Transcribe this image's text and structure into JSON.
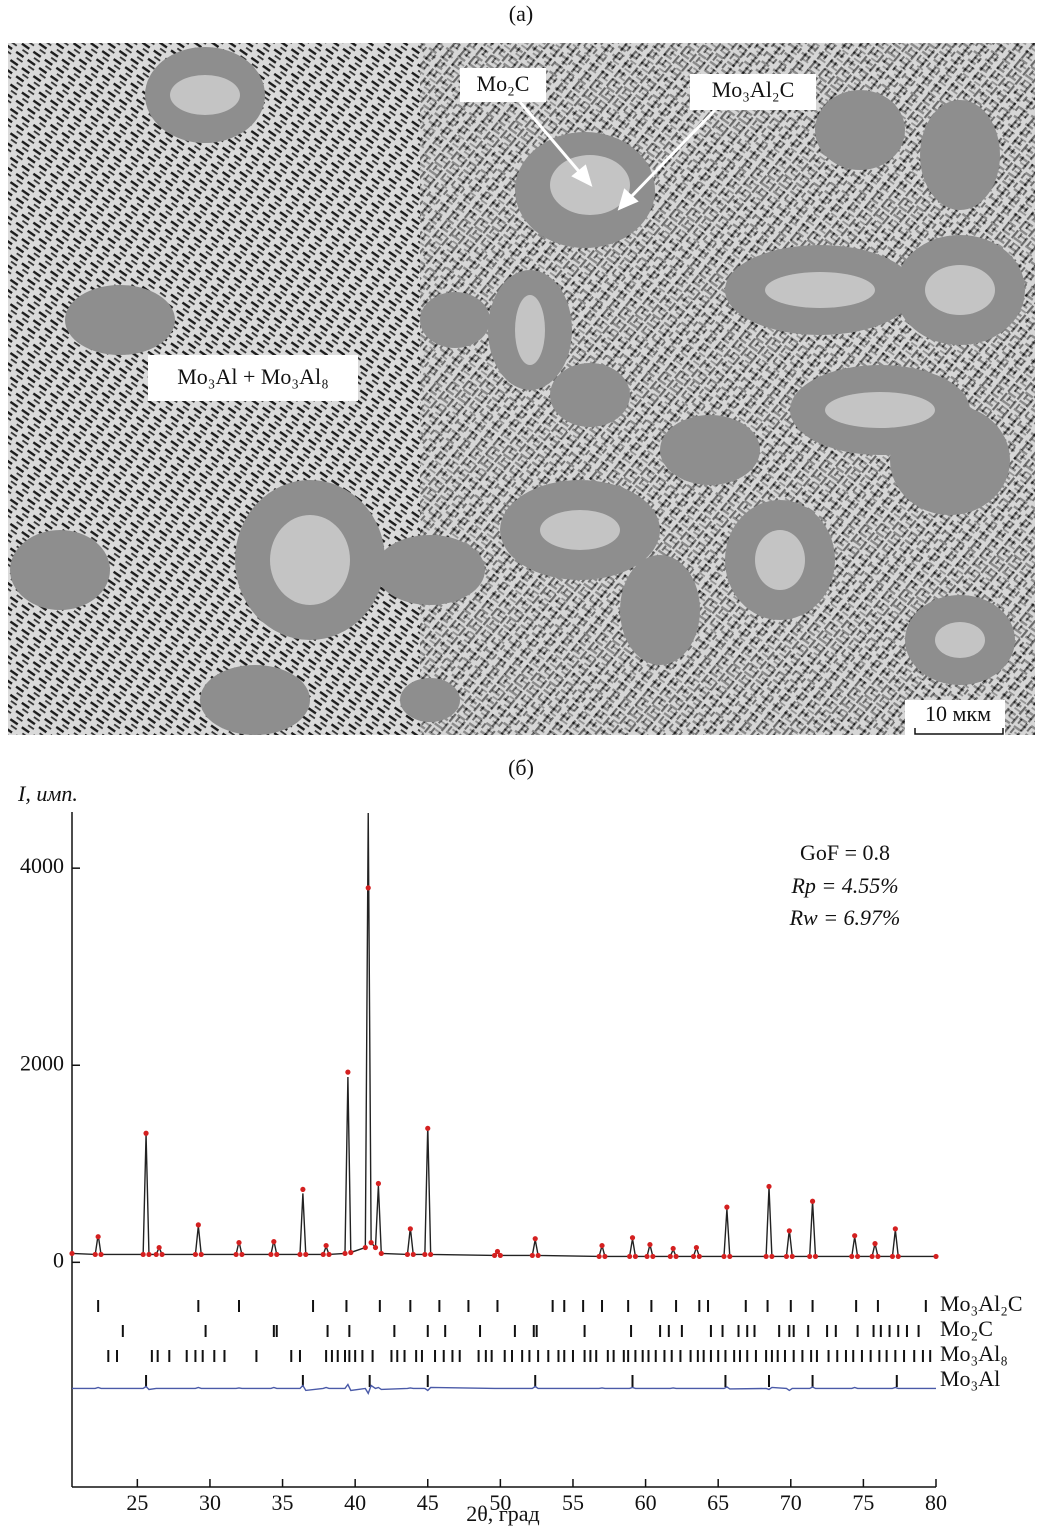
{
  "panel_a": {
    "label": "(a)",
    "annotations": [
      "Mo₂C",
      "Mo₃Al₂C",
      "Mo₃Al + Mo₃Al₈"
    ],
    "scale_bar": "10 мкм"
  },
  "chart_data": {
    "type": "line",
    "panel_label": "(б)",
    "y_label": "I, имп.",
    "x_label": "2θ, град",
    "annotations": [
      "GoF = 0.8",
      "Rp = 4.55%",
      "Rw = 6.97%"
    ],
    "xlim": [
      20.5,
      80
    ],
    "xticks": [
      25,
      30,
      35,
      40,
      45,
      50,
      55,
      60,
      65,
      70,
      75,
      80
    ],
    "ylim": [
      -2280,
      4570
    ],
    "yticks": [
      0,
      2000,
      4000
    ],
    "x": [
      20.5,
      22.1,
      22.3,
      22.5,
      25.4,
      25.6,
      25.8,
      26.3,
      26.5,
      26.7,
      29.0,
      29.2,
      29.4,
      31.8,
      32.0,
      32.2,
      34.2,
      34.4,
      34.6,
      36.2,
      36.4,
      36.6,
      37.8,
      38.0,
      38.2,
      39.3,
      39.5,
      39.7,
      40.7,
      40.9,
      41.1,
      41.4,
      41.6,
      41.8,
      43.6,
      43.8,
      44.0,
      44.8,
      45.0,
      45.2,
      49.6,
      49.8,
      50.0,
      52.2,
      52.4,
      52.6,
      56.8,
      57.0,
      57.2,
      58.9,
      59.1,
      59.3,
      60.1,
      60.3,
      60.5,
      61.7,
      61.9,
      62.1,
      63.3,
      63.5,
      63.7,
      65.4,
      65.6,
      65.8,
      68.3,
      68.5,
      68.7,
      69.7,
      69.9,
      70.1,
      71.3,
      71.5,
      71.7,
      74.2,
      74.4,
      74.6,
      75.6,
      75.8,
      76.0,
      77.0,
      77.2,
      77.4,
      80
    ],
    "series": [
      {
        "color": "#222222",
        "mode": "line",
        "values": [
          90,
          80,
          280,
          80,
          80,
          1300,
          80,
          80,
          150,
          80,
          80,
          370,
          80,
          80,
          210,
          80,
          80,
          220,
          80,
          80,
          700,
          80,
          80,
          160,
          80,
          90,
          1880,
          100,
          150,
          4560,
          200,
          150,
          780,
          90,
          80,
          350,
          80,
          80,
          1380,
          80,
          70,
          100,
          70,
          70,
          230,
          70,
          60,
          170,
          60,
          60,
          240,
          60,
          60,
          180,
          60,
          60,
          130,
          60,
          60,
          150,
          60,
          60,
          540,
          60,
          60,
          760,
          60,
          60,
          330,
          60,
          60,
          620,
          60,
          60,
          260,
          60,
          60,
          190,
          60,
          60,
          330,
          60,
          60
        ]
      },
      {
        "color": "#d42020",
        "mode": "markers",
        "values": [
          90,
          80,
          260,
          80,
          80,
          1310,
          80,
          80,
          150,
          80,
          80,
          380,
          80,
          80,
          200,
          80,
          80,
          210,
          80,
          80,
          740,
          80,
          80,
          170,
          80,
          90,
          1930,
          100,
          150,
          3800,
          200,
          150,
          800,
          90,
          80,
          340,
          80,
          80,
          1360,
          80,
          70,
          110,
          70,
          70,
          240,
          70,
          60,
          170,
          60,
          60,
          250,
          60,
          60,
          180,
          60,
          60,
          140,
          60,
          60,
          150,
          60,
          60,
          560,
          60,
          60,
          770,
          60,
          60,
          320,
          60,
          60,
          620,
          60,
          60,
          270,
          60,
          60,
          190,
          60,
          60,
          340,
          60,
          60
        ]
      },
      {
        "color": "#4a5aa8",
        "mode": "line",
        "values": [
          -1280,
          -1280,
          -1270,
          -1280,
          -1280,
          -1260,
          -1290,
          -1280,
          -1280,
          -1280,
          -1280,
          -1270,
          -1280,
          -1280,
          -1275,
          -1280,
          -1280,
          -1270,
          -1280,
          -1280,
          -1250,
          -1300,
          -1280,
          -1270,
          -1280,
          -1280,
          -1240,
          -1300,
          -1280,
          -1330,
          -1250,
          -1280,
          -1270,
          -1290,
          -1280,
          -1275,
          -1280,
          -1280,
          -1300,
          -1270,
          -1280,
          -1280,
          -1280,
          -1280,
          -1260,
          -1280,
          -1280,
          -1275,
          -1280,
          -1280,
          -1270,
          -1280,
          -1280,
          -1280,
          -1280,
          -1280,
          -1275,
          -1280,
          -1280,
          -1280,
          -1280,
          -1280,
          -1265,
          -1285,
          -1280,
          -1290,
          -1270,
          -1280,
          -1300,
          -1280,
          -1280,
          -1265,
          -1280,
          -1280,
          -1270,
          -1280,
          -1280,
          -1280,
          -1280,
          -1280,
          -1270,
          -1280,
          -1280
        ]
      }
    ],
    "reflections": [
      {
        "name": "Mo₃Al₂C",
        "positions": [
          22.3,
          29.2,
          32.0,
          37.1,
          39.4,
          41.7,
          43.8,
          45.8,
          47.8,
          49.8,
          53.6,
          54.4,
          55.7,
          57.0,
          58.8,
          60.4,
          62.1,
          63.7,
          64.3,
          66.9,
          68.4,
          70.0,
          71.5,
          74.5,
          76.0,
          79.3
        ]
      },
      {
        "name": "Mo₂C",
        "positions": [
          24.0,
          29.7,
          34.4,
          34.6,
          38.1,
          39.6,
          42.7,
          45.0,
          46.2,
          48.6,
          51.0,
          52.3,
          52.5,
          55.8,
          59.0,
          61.0,
          61.6,
          62.5,
          64.5,
          65.3,
          66.4,
          67.0,
          67.5,
          69.2,
          69.9,
          70.2,
          71.2,
          72.5,
          73.1,
          74.6,
          75.7,
          76.2,
          76.8,
          77.4,
          78.0,
          78.8
        ]
      },
      {
        "name": "Mo₃Al₈",
        "positions": [
          23.0,
          23.6,
          26.0,
          26.4,
          27.2,
          28.4,
          29.0,
          29.5,
          30.3,
          31.0,
          33.2,
          35.6,
          36.2,
          38.0,
          38.4,
          38.8,
          39.3,
          39.6,
          40.0,
          40.5,
          41.2,
          42.5,
          42.9,
          43.4,
          44.2,
          44.6,
          45.5,
          46.1,
          46.7,
          47.2,
          48.5,
          49.0,
          49.4,
          50.3,
          50.8,
          51.5,
          52.0,
          52.6,
          53.3,
          54.0,
          54.4,
          55.0,
          55.8,
          56.2,
          56.6,
          57.4,
          57.8,
          58.5,
          58.8,
          59.3,
          59.8,
          60.2,
          60.7,
          61.3,
          61.8,
          62.4,
          63.1,
          63.6,
          64.0,
          64.5,
          65.0,
          65.5,
          66.1,
          66.5,
          67.0,
          67.6,
          68.3,
          68.7,
          69.1,
          69.6,
          70.2,
          70.8,
          71.4,
          71.8,
          72.6,
          73.2,
          73.8,
          74.3,
          74.9,
          75.5,
          76.1,
          76.6,
          77.2,
          77.8,
          78.5,
          79.1,
          79.6
        ]
      },
      {
        "name": "Mo₃Al",
        "positions": [
          25.6,
          36.4,
          41.0,
          45.0,
          52.4,
          59.1,
          65.5,
          68.5,
          71.5,
          77.3
        ]
      }
    ]
  }
}
